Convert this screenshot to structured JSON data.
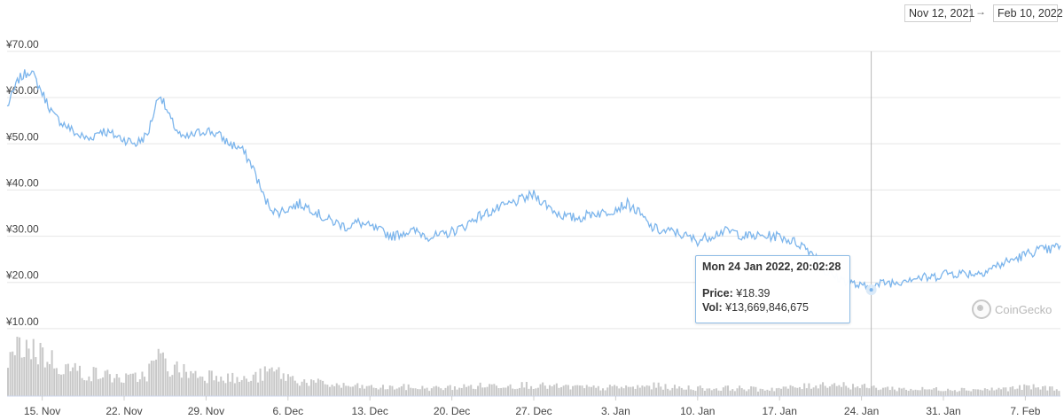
{
  "range": {
    "start": "Nov 12, 2021",
    "arrow": "→",
    "end": "Feb 10, 2022"
  },
  "brand": {
    "name": "CoinGecko",
    "icon": "gecko-logo-icon"
  },
  "tooltip": {
    "title": "Mon 24 Jan 2022, 20:02:28",
    "price_label": "Price:",
    "price_value": "¥18.39",
    "vol_label": "Vol:",
    "vol_value": "¥13,669,846,675"
  },
  "colors": {
    "line": "#7cb5ec",
    "volume": "#c8c8c8",
    "grid": "#e6e6e6",
    "tooltip_border": "#8ebce6"
  },
  "chart_data": {
    "type": "line",
    "title": "",
    "xlabel": "",
    "ylabel": "",
    "grid": true,
    "x_range": [
      "2021-11-12",
      "2022-02-10"
    ],
    "ylim": [
      0,
      70
    ],
    "y_ticks": [
      "¥10.00",
      "¥20.00",
      "¥30.00",
      "¥40.00",
      "¥50.00",
      "¥60.00",
      "¥70.00"
    ],
    "x_ticks": [
      {
        "label": "15. Nov",
        "date": "2021-11-15"
      },
      {
        "label": "22. Nov",
        "date": "2021-11-22"
      },
      {
        "label": "29. Nov",
        "date": "2021-11-29"
      },
      {
        "label": "6. Dec",
        "date": "2021-12-06"
      },
      {
        "label": "13. Dec",
        "date": "2021-12-13"
      },
      {
        "label": "20. Dec",
        "date": "2021-12-20"
      },
      {
        "label": "27. Dec",
        "date": "2021-12-27"
      },
      {
        "label": "3. Jan",
        "date": "2022-01-03"
      },
      {
        "label": "10. Jan",
        "date": "2022-01-10"
      },
      {
        "label": "17. Jan",
        "date": "2022-01-17"
      },
      {
        "label": "24. Jan",
        "date": "2022-01-24"
      },
      {
        "label": "31. Jan",
        "date": "2022-01-31"
      },
      {
        "label": "7. Feb",
        "date": "2022-02-07"
      }
    ],
    "series": [
      {
        "type": "line",
        "x": [
          "2021-11-12",
          "2021-11-13",
          "2021-11-14",
          "2021-11-15",
          "2021-11-16",
          "2021-11-17",
          "2021-11-18",
          "2021-11-19",
          "2021-11-20",
          "2021-11-21",
          "2021-11-22",
          "2021-11-23",
          "2021-11-24",
          "2021-11-25",
          "2021-11-26",
          "2021-11-27",
          "2021-11-28",
          "2021-11-29",
          "2021-11-30",
          "2021-12-01",
          "2021-12-02",
          "2021-12-03",
          "2021-12-04",
          "2021-12-05",
          "2021-12-06",
          "2021-12-07",
          "2021-12-08",
          "2021-12-09",
          "2021-12-10",
          "2021-12-11",
          "2021-12-12",
          "2021-12-13",
          "2021-12-14",
          "2021-12-15",
          "2021-12-16",
          "2021-12-17",
          "2021-12-18",
          "2021-12-19",
          "2021-12-20",
          "2021-12-21",
          "2021-12-22",
          "2021-12-23",
          "2021-12-24",
          "2021-12-25",
          "2021-12-26",
          "2021-12-27",
          "2021-12-28",
          "2021-12-29",
          "2021-12-30",
          "2021-12-31",
          "2022-01-01",
          "2022-01-02",
          "2022-01-03",
          "2022-01-04",
          "2022-01-05",
          "2022-01-06",
          "2022-01-07",
          "2022-01-08",
          "2022-01-09",
          "2022-01-10",
          "2022-01-11",
          "2022-01-12",
          "2022-01-13",
          "2022-01-14",
          "2022-01-15",
          "2022-01-16",
          "2022-01-17",
          "2022-01-18",
          "2022-01-19",
          "2022-01-20",
          "2022-01-21",
          "2022-01-22",
          "2022-01-23",
          "2022-01-24",
          "2022-01-25",
          "2022-01-26",
          "2022-01-27",
          "2022-01-28",
          "2022-01-29",
          "2022-01-30",
          "2022-01-31",
          "2022-02-01",
          "2022-02-02",
          "2022-02-03",
          "2022-02-04",
          "2022-02-05",
          "2022-02-06",
          "2022-02-07",
          "2022-02-08",
          "2022-02-09",
          "2022-02-10"
        ],
        "values": [
          58,
          64,
          66,
          61,
          56,
          54,
          52,
          51,
          53,
          52,
          51,
          50,
          52,
          61,
          55,
          51,
          52,
          53,
          52,
          50,
          49,
          45,
          38,
          35,
          36,
          37,
          36,
          34,
          33,
          32,
          33,
          32,
          31,
          30,
          31,
          31,
          30,
          30,
          31,
          32,
          34,
          35,
          36,
          37,
          38,
          39,
          37,
          35,
          34,
          34,
          35,
          35,
          36,
          37,
          35,
          32,
          31,
          31,
          30,
          29,
          30,
          31,
          31,
          30,
          30,
          30,
          30,
          29,
          28,
          26,
          22,
          21,
          20,
          19,
          19,
          20,
          20,
          21,
          21,
          21,
          22,
          22,
          22,
          22,
          23,
          24,
          25,
          26,
          27,
          27,
          28
        ]
      },
      {
        "type": "bar",
        "name": "Vol",
        "values": [
          0.55,
          0.95,
          0.85,
          0.75,
          0.6,
          0.5,
          0.45,
          0.4,
          0.38,
          0.35,
          0.3,
          0.32,
          0.4,
          0.7,
          0.5,
          0.45,
          0.4,
          0.35,
          0.42,
          0.33,
          0.28,
          0.3,
          0.38,
          0.45,
          0.35,
          0.28,
          0.25,
          0.22,
          0.2,
          0.18,
          0.17,
          0.16,
          0.15,
          0.15,
          0.16,
          0.15,
          0.14,
          0.14,
          0.15,
          0.16,
          0.17,
          0.18,
          0.19,
          0.2,
          0.19,
          0.2,
          0.18,
          0.17,
          0.16,
          0.16,
          0.15,
          0.14,
          0.15,
          0.16,
          0.15,
          0.17,
          0.18,
          0.16,
          0.14,
          0.15,
          0.14,
          0.13,
          0.14,
          0.14,
          0.13,
          0.12,
          0.13,
          0.14,
          0.15,
          0.17,
          0.2,
          0.22,
          0.2,
          0.18,
          0.16,
          0.15,
          0.14,
          0.13,
          0.12,
          0.12,
          0.12,
          0.13,
          0.12,
          0.12,
          0.12,
          0.12,
          0.13,
          0.14,
          0.16,
          0.15,
          0.14
        ]
      }
    ],
    "crosshair": {
      "date": "2022-01-24",
      "price": 18.39
    }
  }
}
